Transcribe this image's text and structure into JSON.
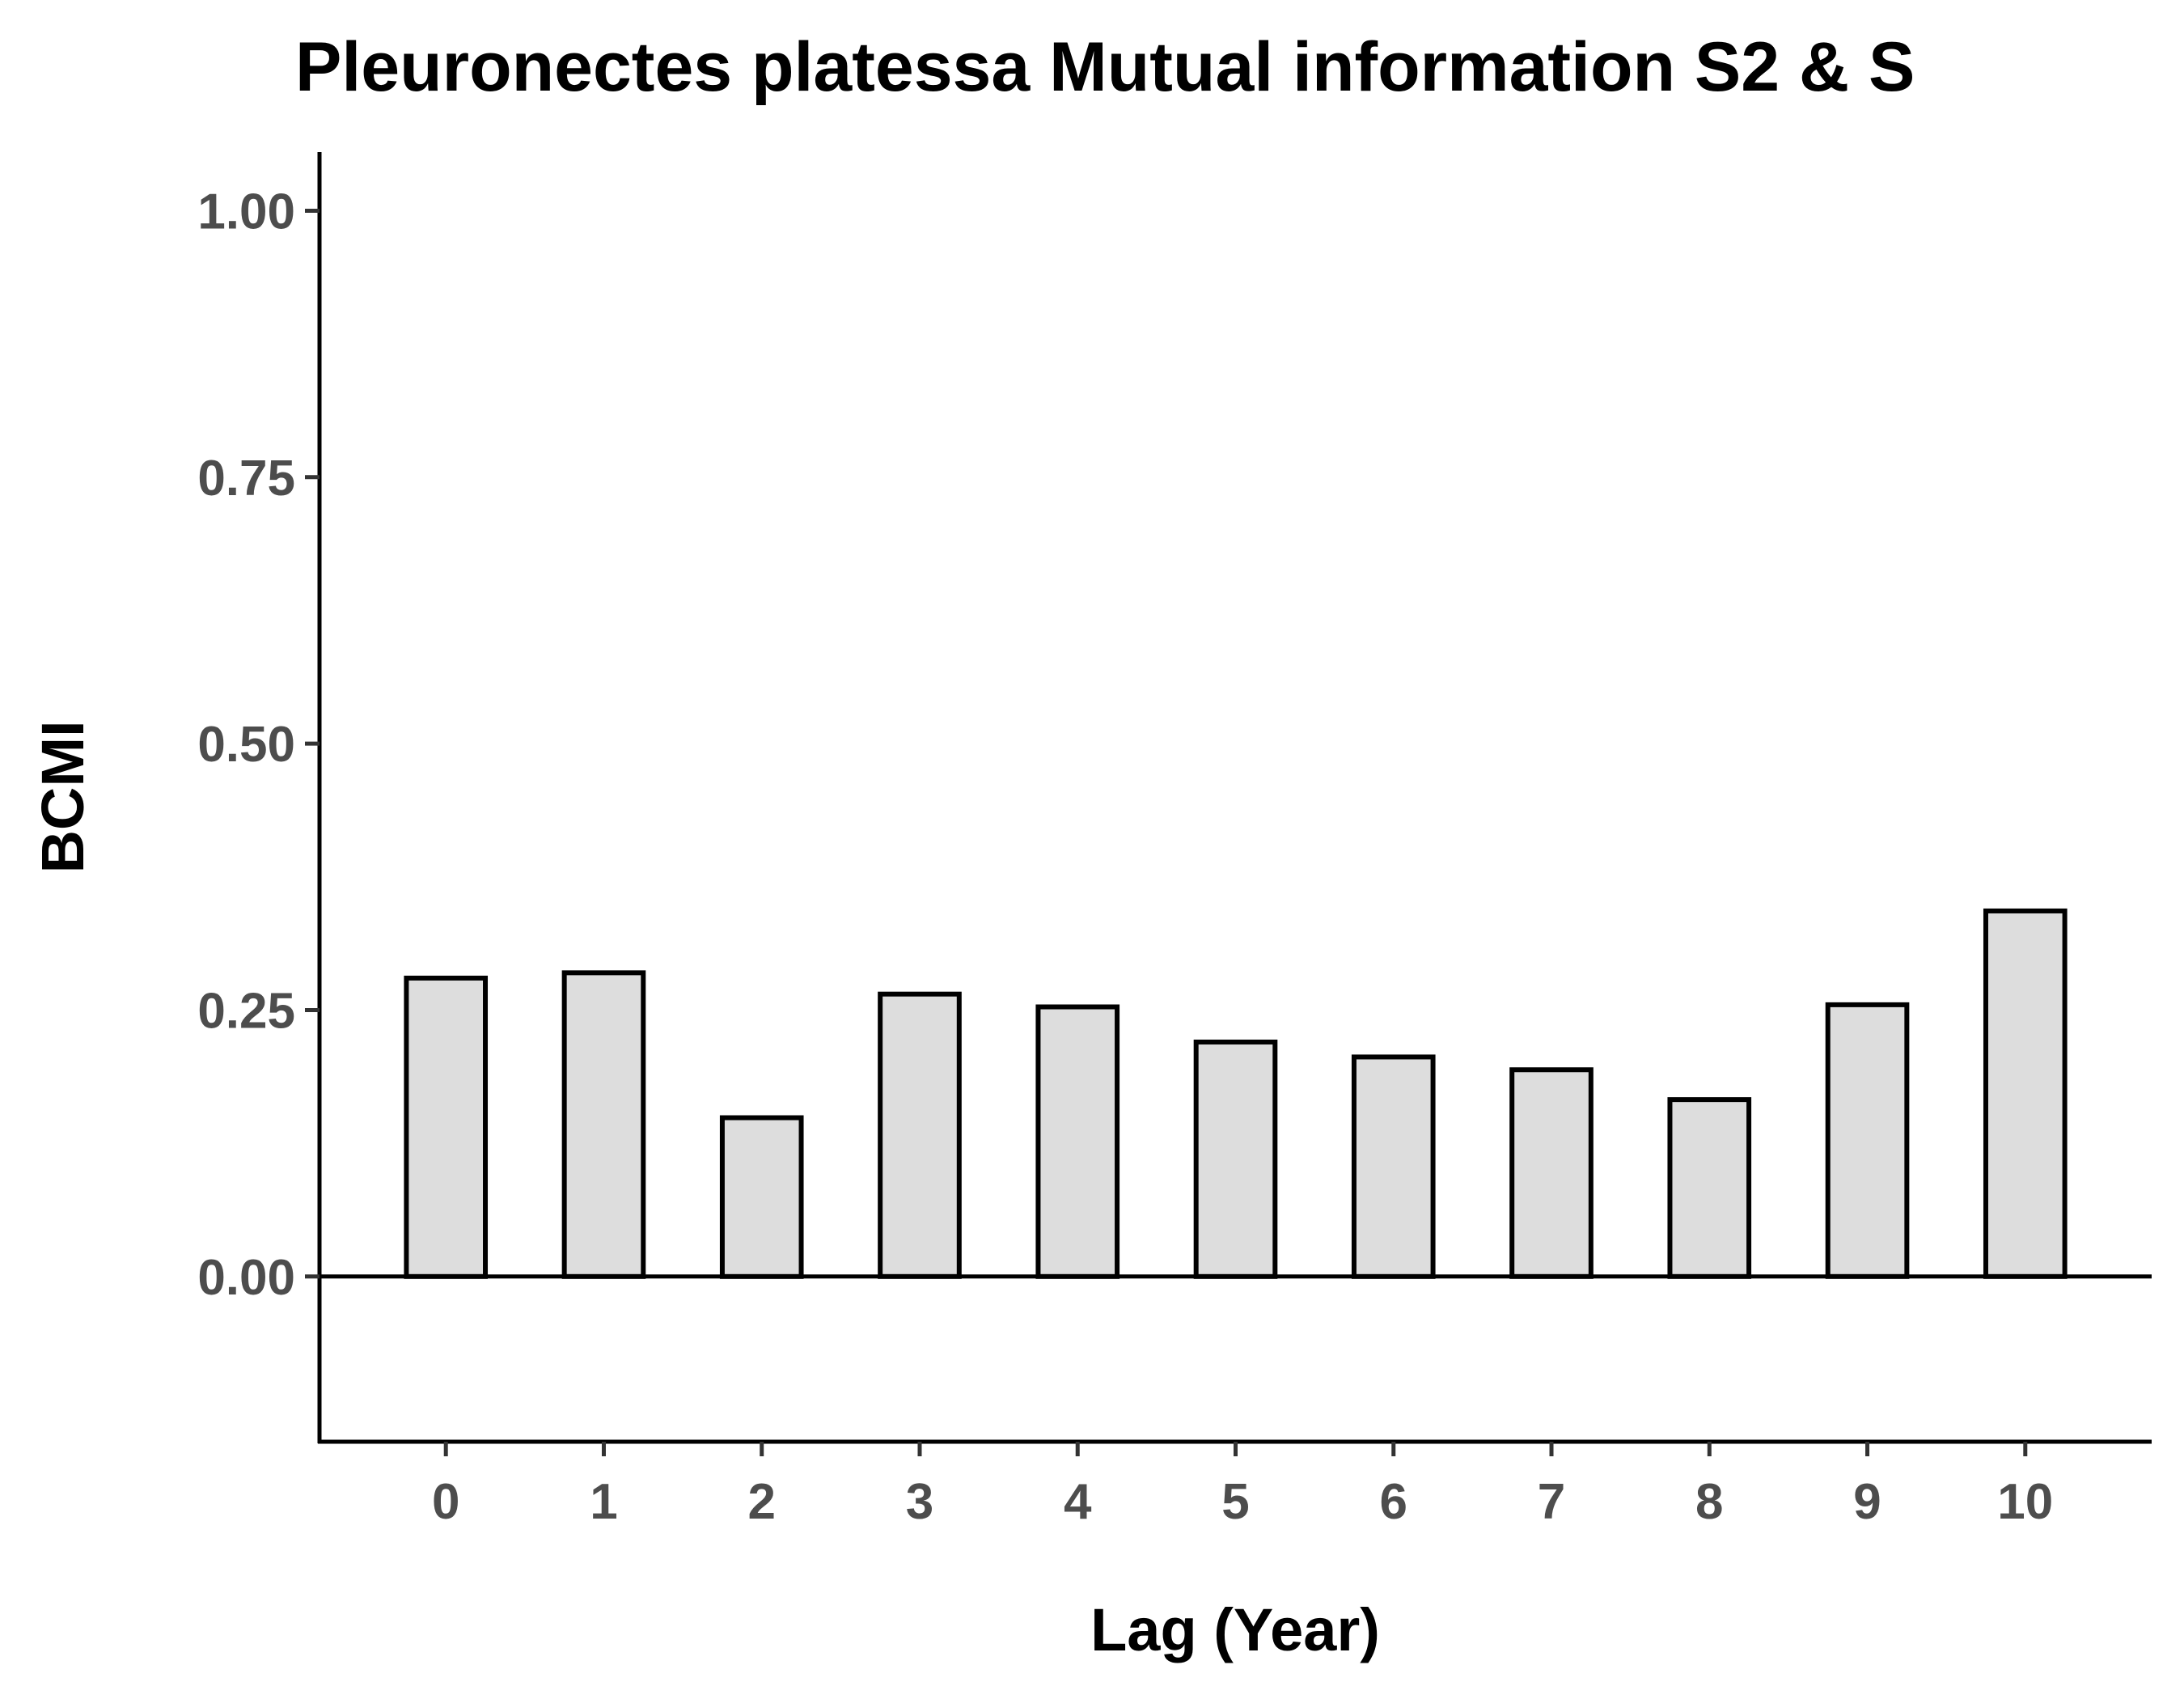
{
  "chart_data": {
    "type": "bar",
    "title": "Pleuronectes platessa Mutual information S2 & S",
    "xlabel": "Lag (Year)",
    "ylabel": "BCMI",
    "categories": [
      "0",
      "1",
      "2",
      "3",
      "4",
      "5",
      "6",
      "7",
      "8",
      "9",
      "10"
    ],
    "values": [
      0.28,
      0.285,
      0.149,
      0.265,
      0.253,
      0.22,
      0.206,
      0.194,
      0.166,
      0.255,
      0.343
    ],
    "ylim": [
      -0.155,
      1.055
    ],
    "yticks": [
      0.0,
      0.25,
      0.5,
      0.75,
      1.0
    ],
    "ytick_labels": [
      "0.00",
      "0.25",
      "0.50",
      "0.75",
      "1.00"
    ],
    "bar_fill": "#dddddd",
    "bar_stroke": "#000000",
    "tick_label_color": "#4d4d4d",
    "zero_line": true,
    "grid": false,
    "legend": "none"
  }
}
